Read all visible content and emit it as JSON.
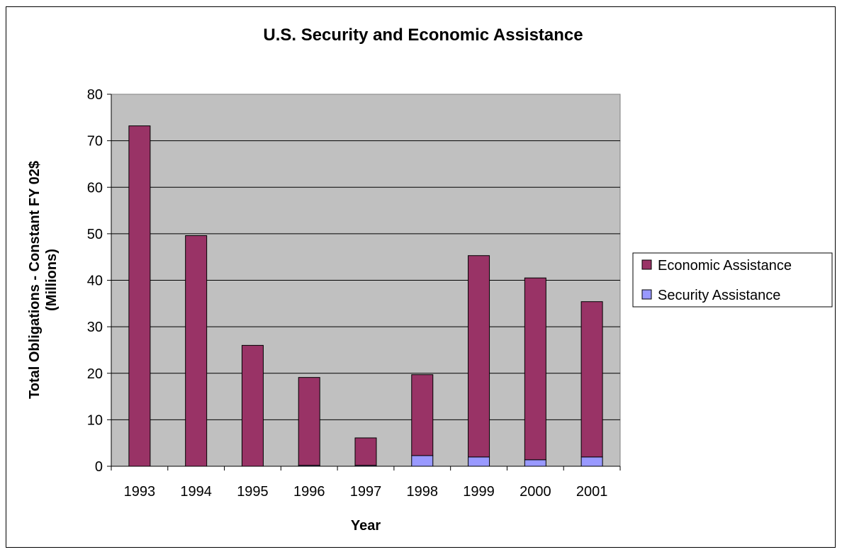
{
  "chart_data": {
    "type": "bar",
    "stacked": true,
    "title": "U.S. Security and Economic Assistance",
    "xlabel": "Year",
    "ylabel": [
      "Total Obligations - Constant FY 02$",
      "(Millions)"
    ],
    "categories": [
      "1993",
      "1994",
      "1995",
      "1996",
      "1997",
      "1998",
      "1999",
      "2000",
      "2001"
    ],
    "ylim": [
      0,
      80
    ],
    "yticks": [
      0,
      10,
      20,
      30,
      40,
      50,
      60,
      70,
      80
    ],
    "series": [
      {
        "name": "Security Assistance",
        "color": "#9999FF",
        "values": [
          0,
          0,
          0,
          0.2,
          0.2,
          2.3,
          2.0,
          1.4,
          2.0
        ]
      },
      {
        "name": "Economic Assistance",
        "color": "#993366",
        "values": [
          73.2,
          49.6,
          26.0,
          18.9,
          5.9,
          17.4,
          43.3,
          39.1,
          33.4
        ]
      }
    ],
    "legend": [
      {
        "name": "Economic Assistance",
        "color": "#993366"
      },
      {
        "name": "Security Assistance",
        "color": "#9999FF"
      }
    ],
    "legend_position": "right",
    "grid": true,
    "plot_background": "#C0C0C0"
  }
}
